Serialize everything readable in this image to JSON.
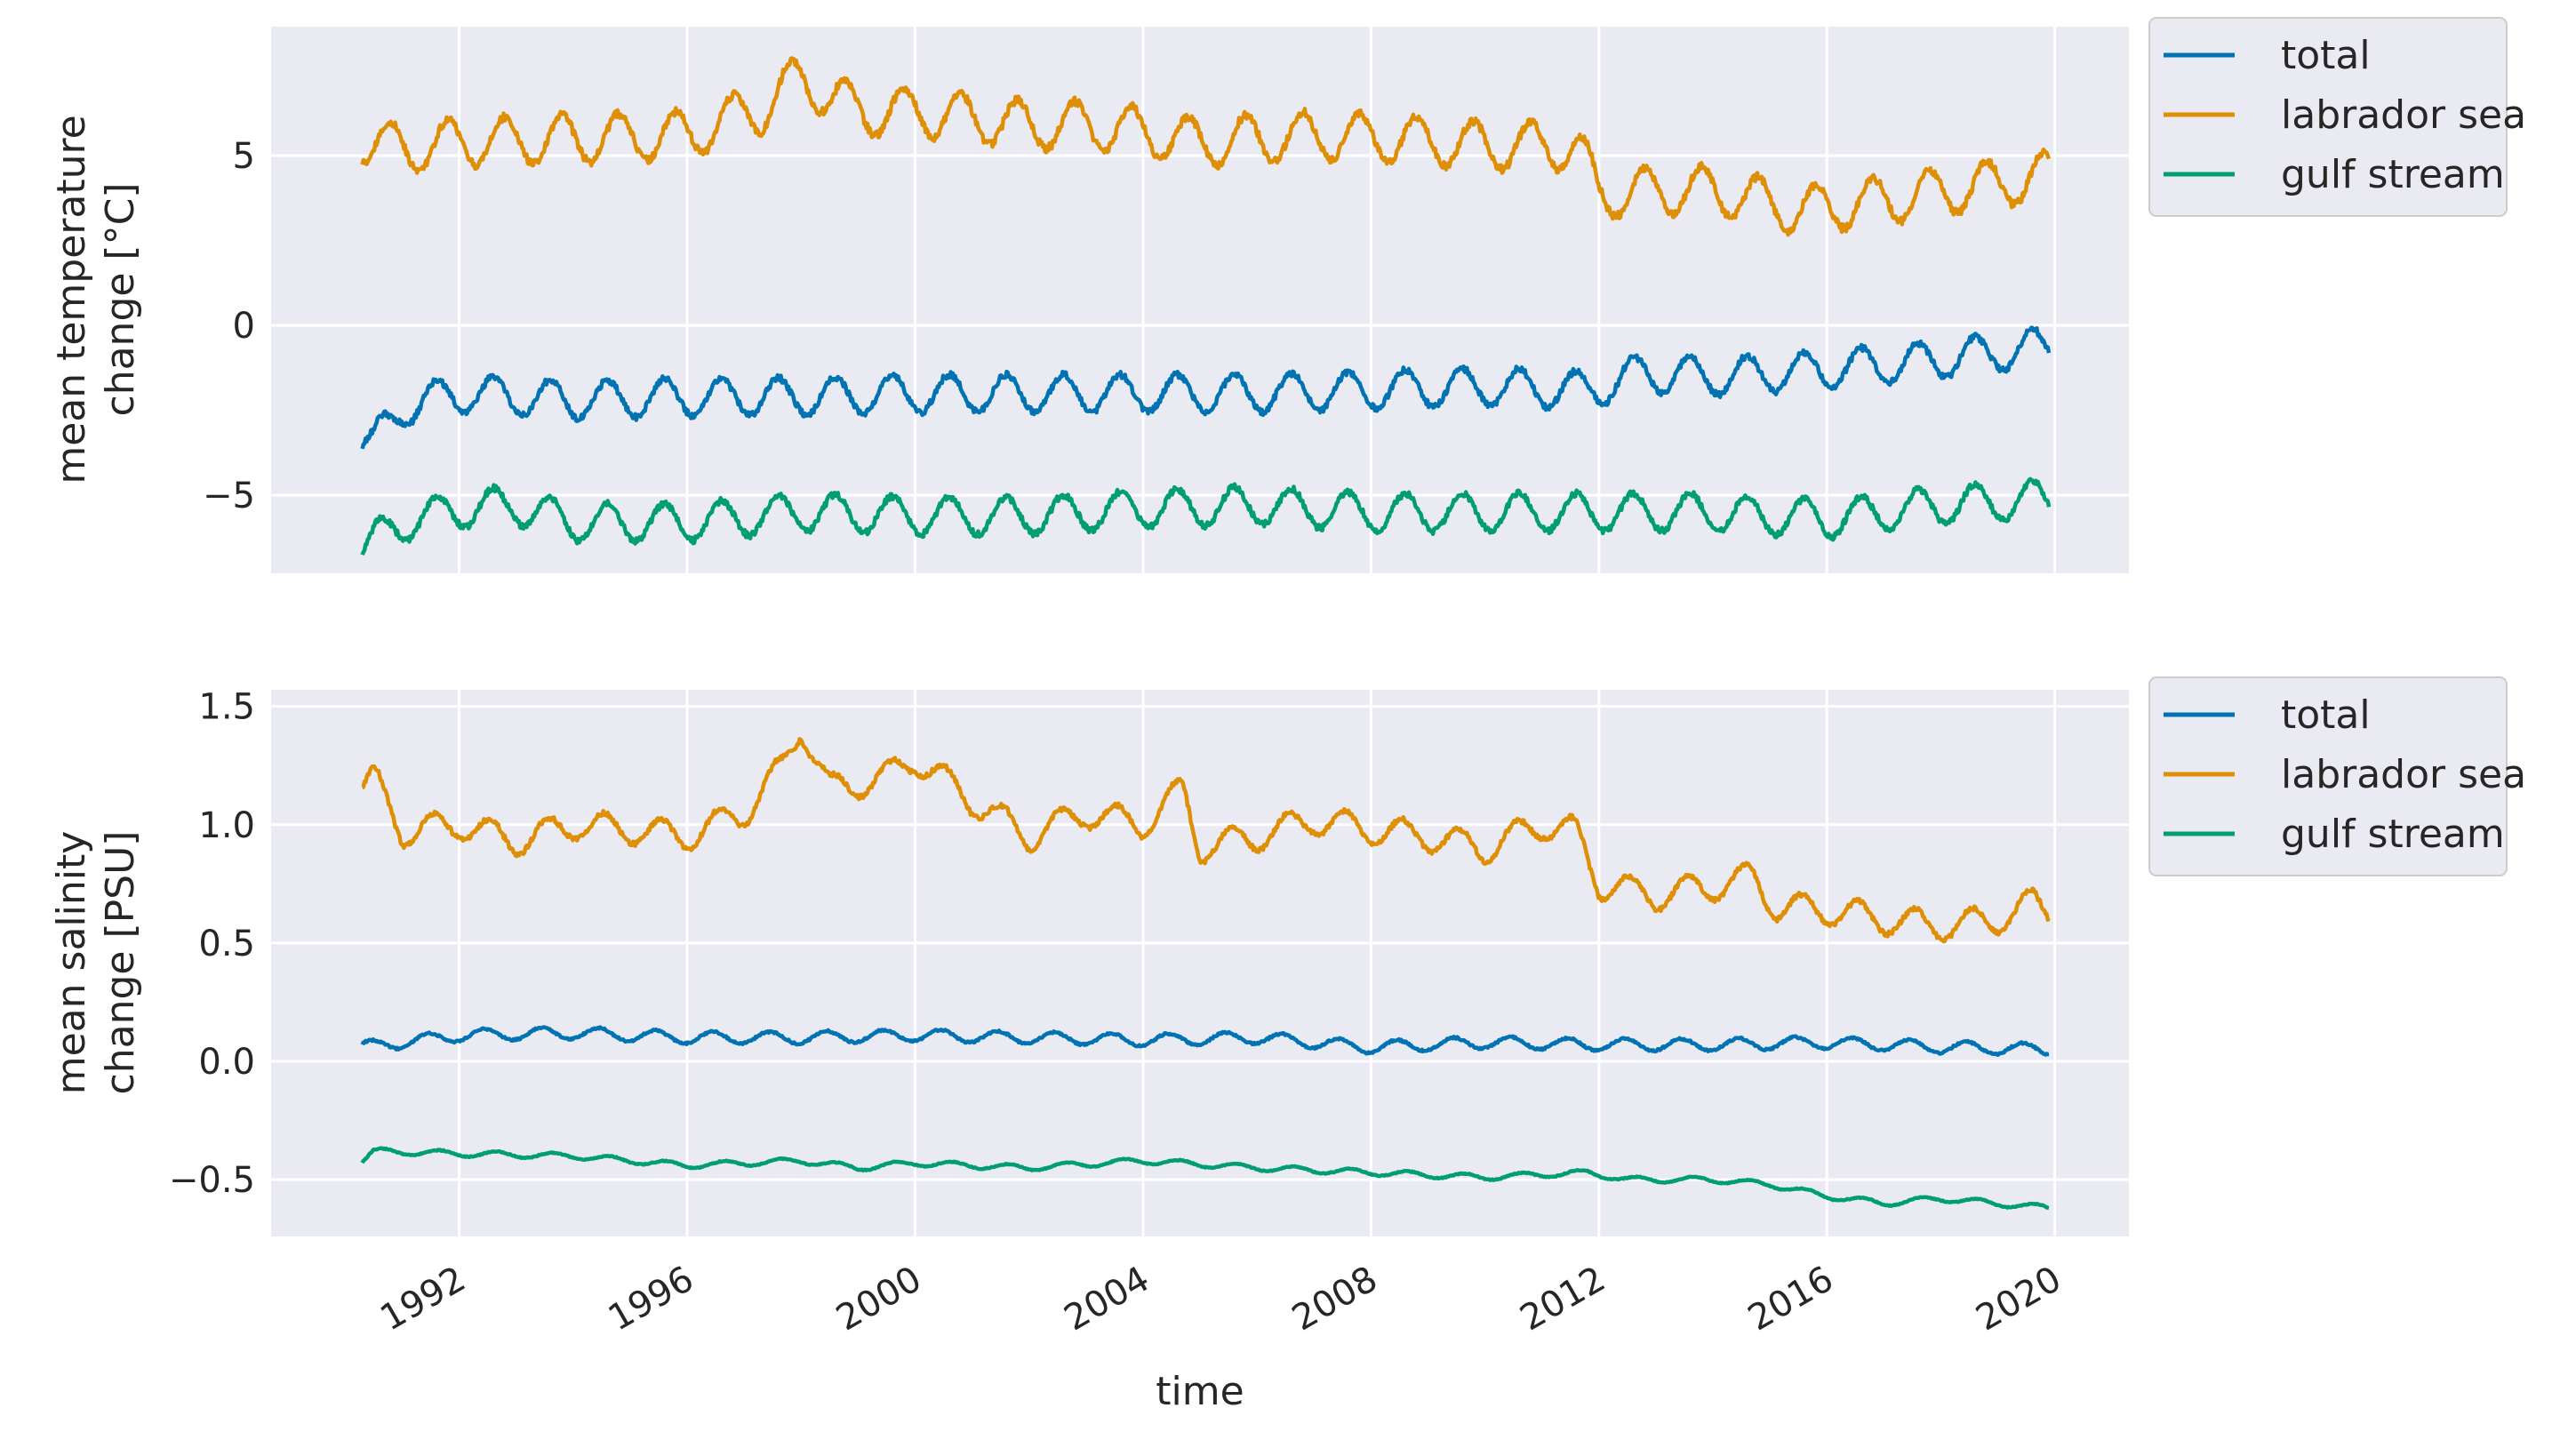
{
  "figure": {
    "xlabel": "time",
    "x_ticks": [
      "1992",
      "1996",
      "2000",
      "2004",
      "2008",
      "2012",
      "2016",
      "2020"
    ],
    "colors": {
      "background": "#eaeaf2",
      "grid": "#ffffff",
      "total": "#0173b2",
      "labrador sea": "#de8f05",
      "gulf stream": "#029e73"
    }
  },
  "chart_data": [
    {
      "type": "line",
      "ylabel": [
        "mean temperature",
        "change [°C]"
      ],
      "ylim": [
        -7.3,
        8.8
      ],
      "xlim": [
        1988.7,
        2021.3
      ],
      "y_ticks": [
        5,
        0,
        -5
      ],
      "y_tick_labels": [
        "5",
        "0",
        "−5"
      ],
      "grid": true,
      "legend_placement": "outside-top-right",
      "series": [
        {
          "name": "total",
          "seasonal_amplitude": 0.55,
          "phase": 0.35,
          "points": [
            [
              1990.3,
              -3.4
            ],
            [
              1990.5,
              -3.5
            ],
            [
              1991.0,
              -2.4
            ],
            [
              1992.0,
              -2.0
            ],
            [
              1994.0,
              -2.2
            ],
            [
              1996.0,
              -2.1
            ],
            [
              1998.0,
              -2.1
            ],
            [
              2000.0,
              -2.0
            ],
            [
              2002.0,
              -2.0
            ],
            [
              2004.0,
              -2.0
            ],
            [
              2006.0,
              -2.0
            ],
            [
              2008.0,
              -1.9
            ],
            [
              2010.0,
              -1.8
            ],
            [
              2011.8,
              -1.9
            ],
            [
              2012.8,
              -1.4
            ],
            [
              2014.0,
              -1.5
            ],
            [
              2016.0,
              -1.3
            ],
            [
              2018.0,
              -1.0
            ],
            [
              2019.9,
              -0.6
            ]
          ]
        },
        {
          "name": "labrador sea",
          "seasonal_amplitude": 0.7,
          "phase": 0.55,
          "points": [
            [
              1990.3,
              5.5
            ],
            [
              1991.0,
              5.2
            ],
            [
              1992.0,
              5.4
            ],
            [
              1994.0,
              5.5
            ],
            [
              1996.0,
              5.6
            ],
            [
              1997.3,
              6.4
            ],
            [
              1998.0,
              7.3
            ],
            [
              1999.0,
              6.3
            ],
            [
              2000.0,
              6.3
            ],
            [
              2002.0,
              5.9
            ],
            [
              2003.0,
              5.9
            ],
            [
              2004.0,
              5.7
            ],
            [
              2005.0,
              5.4
            ],
            [
              2006.0,
              5.5
            ],
            [
              2007.0,
              5.6
            ],
            [
              2008.5,
              5.5
            ],
            [
              2010.0,
              5.3
            ],
            [
              2011.6,
              5.3
            ],
            [
              2012.0,
              3.9
            ],
            [
              2014.0,
              4.0
            ],
            [
              2015.5,
              3.4
            ],
            [
              2017.0,
              3.7
            ],
            [
              2019.9,
              4.4
            ]
          ]
        },
        {
          "name": "gulf stream",
          "seasonal_amplitude": 0.55,
          "phase": 0.35,
          "points": [
            [
              1990.3,
              -6.6
            ],
            [
              1991.0,
              -5.8
            ],
            [
              1992.0,
              -5.4
            ],
            [
              1993.0,
              -5.3
            ],
            [
              1994.0,
              -5.8
            ],
            [
              1996.0,
              -5.8
            ],
            [
              1998.0,
              -5.5
            ],
            [
              2000.0,
              -5.6
            ],
            [
              2002.0,
              -5.6
            ],
            [
              2004.0,
              -5.4
            ],
            [
              2006.0,
              -5.3
            ],
            [
              2008.0,
              -5.5
            ],
            [
              2010.0,
              -5.5
            ],
            [
              2012.0,
              -5.5
            ],
            [
              2014.0,
              -5.5
            ],
            [
              2016.0,
              -5.7
            ],
            [
              2018.0,
              -5.3
            ],
            [
              2019.9,
              -5.1
            ]
          ]
        }
      ]
    },
    {
      "type": "line",
      "ylabel": [
        "mean salinity",
        "change [PSU]"
      ],
      "ylim": [
        -0.74,
        1.57
      ],
      "xlim": [
        1988.7,
        2021.3
      ],
      "y_ticks": [
        1.5,
        1.0,
        0.5,
        0.0,
        -0.5
      ],
      "y_tick_labels": [
        "1.5",
        "1.0",
        "0.5",
        "0.0",
        "−0.5"
      ],
      "grid": true,
      "legend_placement": "outside-top-right",
      "series": [
        {
          "name": "total",
          "seasonal_amplitude": 0.025,
          "phase": 0.2,
          "points": [
            [
              1990.3,
              0.06
            ],
            [
              1992.0,
              0.11
            ],
            [
              1994.0,
              0.12
            ],
            [
              1996.0,
              0.1
            ],
            [
              1998.0,
              0.1
            ],
            [
              2000.0,
              0.11
            ],
            [
              2002.0,
              0.1
            ],
            [
              2004.0,
              0.09
            ],
            [
              2006.0,
              0.1
            ],
            [
              2008.0,
              0.06
            ],
            [
              2010.0,
              0.08
            ],
            [
              2012.0,
              0.07
            ],
            [
              2014.0,
              0.07
            ],
            [
              2016.0,
              0.08
            ],
            [
              2018.0,
              0.06
            ],
            [
              2019.9,
              0.05
            ]
          ]
        },
        {
          "name": "labrador sea",
          "seasonal_amplitude": 0.06,
          "phase": 0.3,
          "points": [
            [
              1990.3,
              1.15
            ],
            [
              1990.5,
              1.2
            ],
            [
              1991.0,
              0.97
            ],
            [
              1992.0,
              1.0
            ],
            [
              1993.0,
              0.93
            ],
            [
              1994.0,
              1.0
            ],
            [
              1995.0,
              0.98
            ],
            [
              1996.0,
              0.95
            ],
            [
              1997.0,
              1.05
            ],
            [
              1997.7,
              1.25
            ],
            [
              1998.0,
              1.42
            ],
            [
              1998.5,
              1.15
            ],
            [
              1999.5,
              1.2
            ],
            [
              2000.0,
              1.28
            ],
            [
              2001.0,
              1.1
            ],
            [
              2002.0,
              0.95
            ],
            [
              2003.0,
              1.05
            ],
            [
              2004.0,
              1.0
            ],
            [
              2004.7,
              1.15
            ],
            [
              2005.0,
              0.9
            ],
            [
              2006.0,
              0.95
            ],
            [
              2007.0,
              1.02
            ],
            [
              2008.0,
              0.98
            ],
            [
              2009.0,
              0.95
            ],
            [
              2010.0,
              0.9
            ],
            [
              2011.0,
              1.0
            ],
            [
              2011.6,
              0.97
            ],
            [
              2012.0,
              0.75
            ],
            [
              2013.0,
              0.7
            ],
            [
              2014.0,
              0.74
            ],
            [
              2014.7,
              0.78
            ],
            [
              2015.1,
              0.65
            ],
            [
              2016.0,
              0.64
            ],
            [
              2017.0,
              0.6
            ],
            [
              2018.0,
              0.57
            ],
            [
              2019.0,
              0.6
            ],
            [
              2019.6,
              0.67
            ],
            [
              2019.9,
              0.63
            ]
          ]
        },
        {
          "name": "gulf stream",
          "seasonal_amplitude": 0.012,
          "phase": 0.4,
          "points": [
            [
              1990.3,
              -0.42
            ],
            [
              1990.5,
              -0.38
            ],
            [
              1992.0,
              -0.39
            ],
            [
              1994.0,
              -0.4
            ],
            [
              1996.0,
              -0.44
            ],
            [
              1998.0,
              -0.42
            ],
            [
              1999.0,
              -0.45
            ],
            [
              2000.0,
              -0.43
            ],
            [
              2002.0,
              -0.45
            ],
            [
              2004.0,
              -0.42
            ],
            [
              2006.0,
              -0.45
            ],
            [
              2008.0,
              -0.47
            ],
            [
              2010.0,
              -0.49
            ],
            [
              2011.8,
              -0.47
            ],
            [
              2012.5,
              -0.5
            ],
            [
              2014.0,
              -0.5
            ],
            [
              2015.0,
              -0.52
            ],
            [
              2016.0,
              -0.57
            ],
            [
              2017.0,
              -0.6
            ],
            [
              2018.0,
              -0.58
            ],
            [
              2019.9,
              -0.62
            ]
          ]
        }
      ]
    }
  ]
}
